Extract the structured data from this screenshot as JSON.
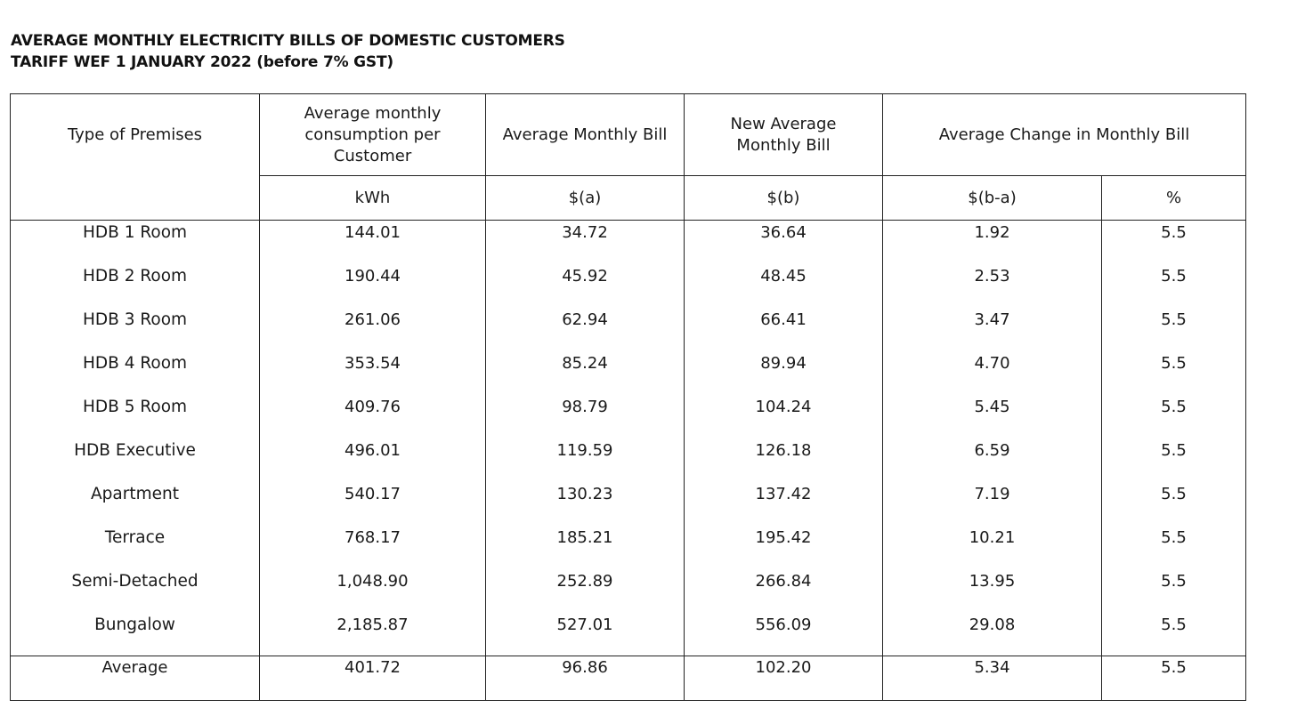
{
  "title": {
    "line1": "AVERAGE MONTHLY ELECTRICITY BILLS OF DOMESTIC CUSTOMERS",
    "line2": "TARIFF WEF 1 JANUARY 2022 (before 7% GST)"
  },
  "table": {
    "headers": {
      "premises": "Type of Premises",
      "consumption": "Average monthly consumption per Customer",
      "avg_bill": "Average Monthly Bill",
      "new_avg_bill": "New Average Monthly Bill",
      "change": "Average Change in Monthly Bill"
    },
    "units": {
      "consumption": "kWh",
      "avg_bill": "$(a)",
      "new_avg_bill": "$(b)",
      "change_abs": "$(b-a)",
      "change_pct": "%"
    },
    "rows": [
      {
        "premises": "HDB 1 Room",
        "kwh": "144.01",
        "bill_a": "34.72",
        "bill_b": "36.64",
        "change": "1.92",
        "pct": "5.5"
      },
      {
        "premises": "HDB 2 Room",
        "kwh": "190.44",
        "bill_a": "45.92",
        "bill_b": "48.45",
        "change": "2.53",
        "pct": "5.5"
      },
      {
        "premises": "HDB 3 Room",
        "kwh": "261.06",
        "bill_a": "62.94",
        "bill_b": "66.41",
        "change": "3.47",
        "pct": "5.5"
      },
      {
        "premises": "HDB 4 Room",
        "kwh": "353.54",
        "bill_a": "85.24",
        "bill_b": "89.94",
        "change": "4.70",
        "pct": "5.5"
      },
      {
        "premises": "HDB 5 Room",
        "kwh": "409.76",
        "bill_a": "98.79",
        "bill_b": "104.24",
        "change": "5.45",
        "pct": "5.5"
      },
      {
        "premises": "HDB Executive",
        "kwh": "496.01",
        "bill_a": "119.59",
        "bill_b": "126.18",
        "change": "6.59",
        "pct": "5.5"
      },
      {
        "premises": "Apartment",
        "kwh": "540.17",
        "bill_a": "130.23",
        "bill_b": "137.42",
        "change": "7.19",
        "pct": "5.5"
      },
      {
        "premises": "Terrace",
        "kwh": "768.17",
        "bill_a": "185.21",
        "bill_b": "195.42",
        "change": "10.21",
        "pct": "5.5"
      },
      {
        "premises": "Semi-Detached",
        "kwh": "1,048.90",
        "bill_a": "252.89",
        "bill_b": "266.84",
        "change": "13.95",
        "pct": "5.5"
      },
      {
        "premises": "Bungalow",
        "kwh": "2,185.87",
        "bill_a": "527.01",
        "bill_b": "556.09",
        "change": "29.08",
        "pct": "5.5"
      }
    ],
    "average": {
      "premises": "Average",
      "kwh": "401.72",
      "bill_a": "96.86",
      "bill_b": "102.20",
      "change": "5.34",
      "pct": "5.5"
    }
  }
}
